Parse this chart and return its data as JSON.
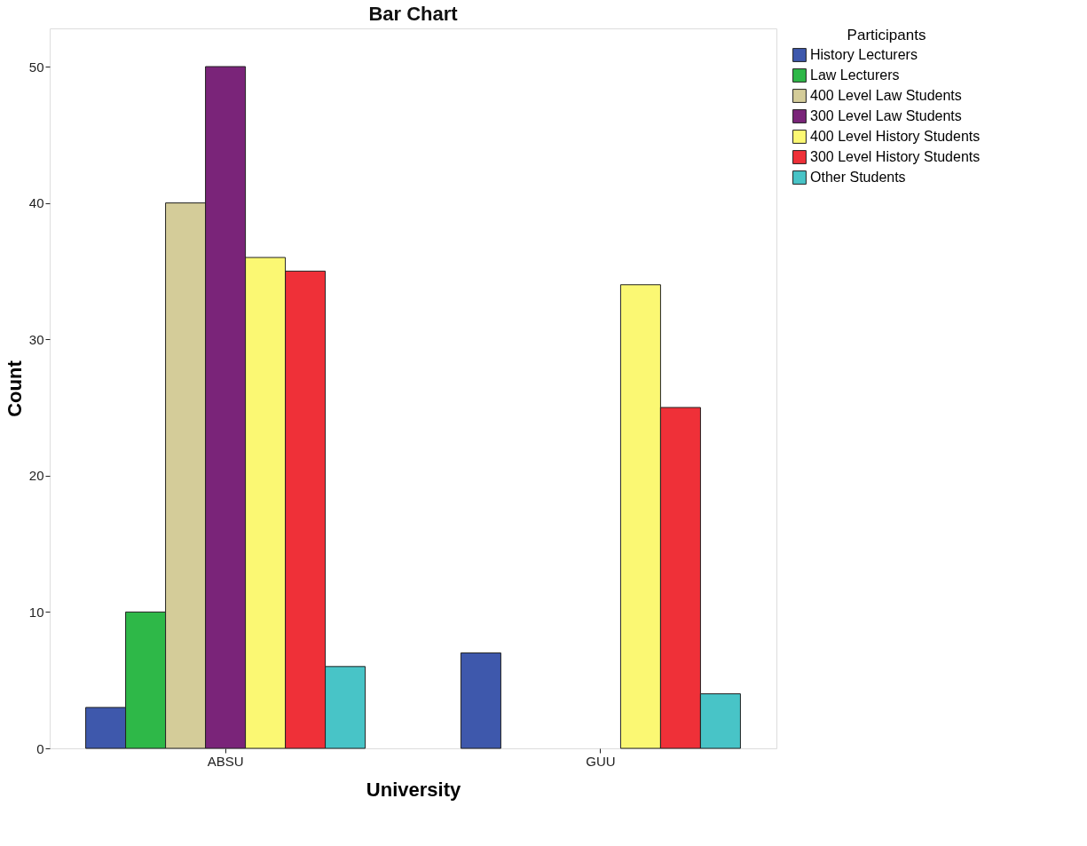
{
  "chart_data": {
    "type": "bar",
    "title": "Bar Chart",
    "xlabel": "University",
    "ylabel": "Count",
    "legend_title": "Participants",
    "legend": "top right",
    "grid": false,
    "categories": [
      "ABSU",
      "GUU"
    ],
    "ylim": [
      0,
      52.8
    ],
    "yticks": [
      0,
      10,
      20,
      30,
      40,
      50
    ],
    "series": [
      {
        "name": "History Lecturers",
        "color": "#3e58ac",
        "values": [
          3,
          7
        ]
      },
      {
        "name": "Law Lecturers",
        "color": "#2eb848",
        "values": [
          10,
          null
        ]
      },
      {
        "name": "400 Level Law Students",
        "color": "#d4cc99",
        "values": [
          40,
          null
        ]
      },
      {
        "name": "300 Level Law Students",
        "color": "#7a2479",
        "values": [
          50,
          null
        ]
      },
      {
        "name": "400 Level History Students",
        "color": "#fbf873",
        "values": [
          36,
          34
        ]
      },
      {
        "name": "300 Level History Students",
        "color": "#ef3038",
        "values": [
          35,
          25
        ]
      },
      {
        "name": "Other Students",
        "color": "#48c4c7",
        "values": [
          6,
          4
        ]
      }
    ]
  }
}
